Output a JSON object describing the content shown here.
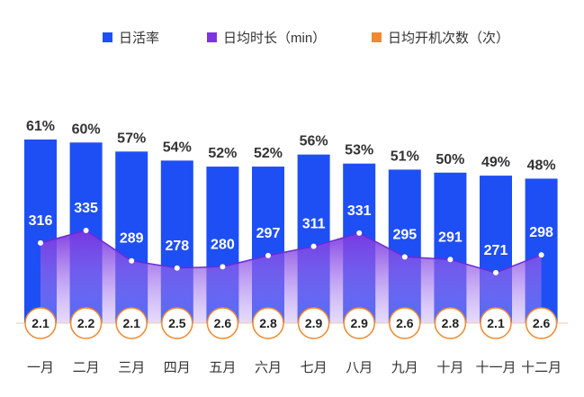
{
  "chart_data": {
    "type": "bar",
    "categories": [
      "一月",
      "二月",
      "三月",
      "四月",
      "五月",
      "六月",
      "七月",
      "八月",
      "九月",
      "十月",
      "十一月",
      "十二月"
    ],
    "series": [
      {
        "name": "日活率",
        "kind": "bar",
        "color": "#1E4FF5",
        "values": [
          61,
          60,
          57,
          54,
          52,
          52,
          56,
          53,
          51,
          50,
          49,
          48
        ],
        "labels": [
          "61%",
          "60%",
          "57%",
          "54%",
          "52%",
          "52%",
          "56%",
          "53%",
          "51%",
          "50%",
          "49%",
          "48%"
        ]
      },
      {
        "name": "日均时长（min）",
        "kind": "area",
        "color": "#7B35E0",
        "values": [
          316,
          335,
          289,
          278,
          280,
          297,
          311,
          331,
          295,
          291,
          271,
          298
        ],
        "labels": [
          "316",
          "335",
          "289",
          "278",
          "280",
          "297",
          "311",
          "331",
          "295",
          "291",
          "271",
          "298"
        ]
      },
      {
        "name": "日均开机次数（次）",
        "kind": "marker",
        "color": "#F0892E",
        "values": [
          2.1,
          2.2,
          2.1,
          2.5,
          2.6,
          2.8,
          2.9,
          2.9,
          2.6,
          2.8,
          2.1,
          2.6
        ],
        "labels": [
          "2.1",
          "2.2",
          "2.1",
          "2.5",
          "2.6",
          "2.8",
          "2.9",
          "2.9",
          "2.6",
          "2.8",
          "2.1",
          "2.6"
        ]
      }
    ],
    "legend_position": "top",
    "grid": false
  },
  "legend": {
    "items": [
      {
        "label": "日活率",
        "color": "#1E4FF5"
      },
      {
        "label": "日均时长（min）",
        "color": "#7B35E0"
      },
      {
        "label": "日均开机次数（次）",
        "color": "#F0892E"
      }
    ]
  }
}
